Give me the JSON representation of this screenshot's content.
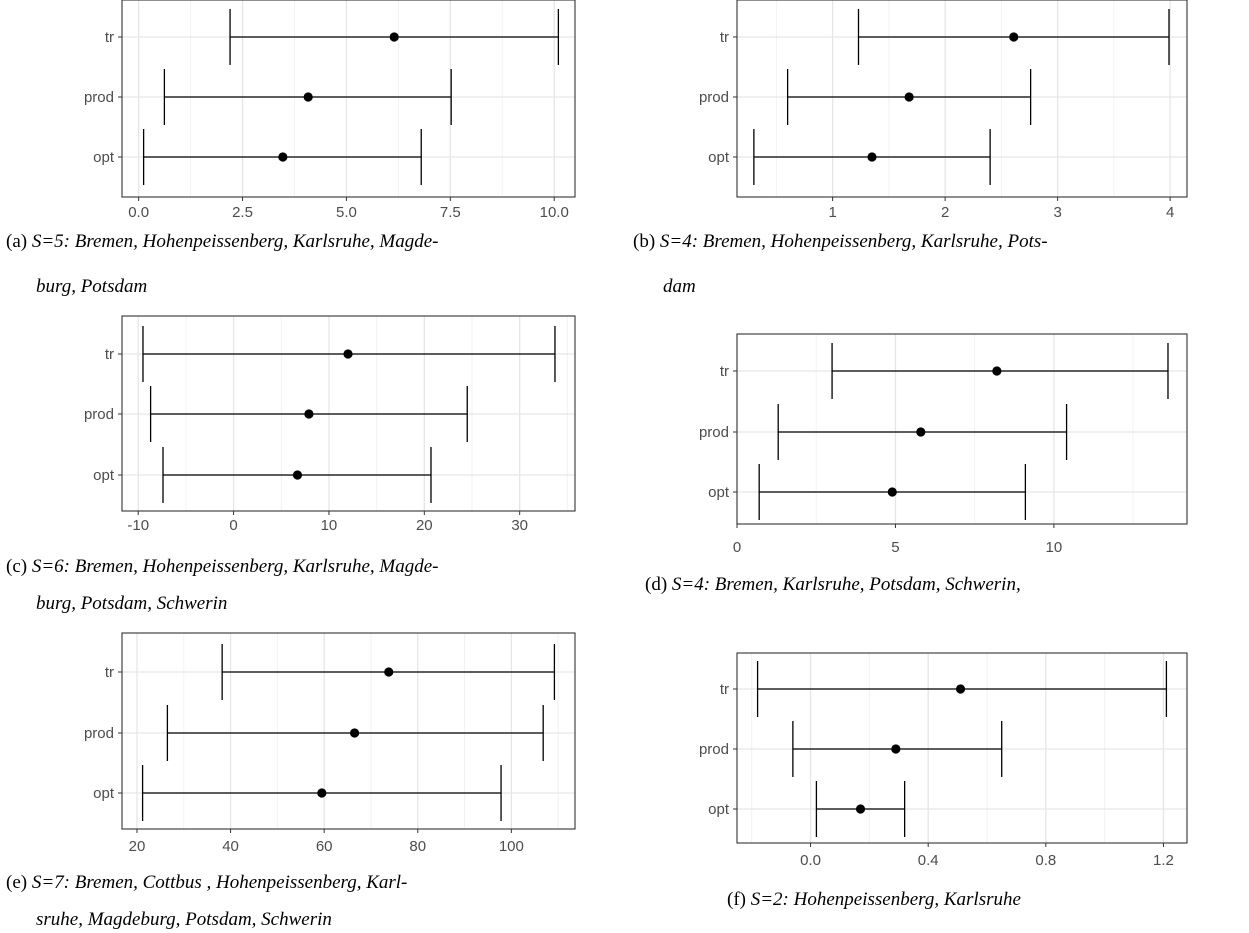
{
  "chart_data": [
    {
      "type": "errorbar",
      "panel_label": "(a)",
      "caption_lines": [
        "S=5: Bremen, Hohenpeissenberg, Karlsruhe, Magde-",
        "burg, Potsdam"
      ],
      "categories": [
        "tr",
        "prod",
        "opt"
      ],
      "estimates": [
        6.15,
        4.08,
        3.47
      ],
      "lower": [
        2.2,
        0.62,
        0.12
      ],
      "upper": [
        10.1,
        7.52,
        6.8
      ],
      "xlim": [
        -0.4,
        10.5
      ],
      "xticks": [
        "0.0",
        "2.5",
        "5.0",
        "7.5",
        "10.0"
      ],
      "xtick_values": [
        0,
        2.5,
        5,
        7.5,
        10
      ]
    },
    {
      "type": "errorbar",
      "panel_label": "(b)",
      "caption_lines": [
        "S=4: Bremen, Hohenpeissenberg, Karlsruhe, Pots-",
        "dam"
      ],
      "categories": [
        "tr",
        "prod",
        "opt"
      ],
      "estimates": [
        2.61,
        1.68,
        1.35
      ],
      "lower": [
        1.23,
        0.6,
        0.3
      ],
      "upper": [
        3.99,
        2.76,
        2.4
      ],
      "xlim": [
        0.15,
        4.15
      ],
      "xticks": [
        "1",
        "2",
        "3",
        "4"
      ],
      "xtick_values": [
        1,
        2,
        3,
        4
      ]
    },
    {
      "type": "errorbar",
      "panel_label": "(c)",
      "caption_lines": [
        "S=6: Bremen, Hohenpeissenberg, Karlsruhe, Magde-",
        "burg, Potsdam, Schwerin"
      ],
      "categories": [
        "tr",
        "prod",
        "opt"
      ],
      "estimates": [
        12.0,
        7.9,
        6.7
      ],
      "lower": [
        -9.5,
        -8.7,
        -7.4
      ],
      "upper": [
        33.7,
        24.5,
        20.7
      ],
      "xlim": [
        -11.7,
        35.8
      ],
      "xticks": [
        "-10",
        "0",
        "10",
        "20",
        "30"
      ],
      "xtick_values": [
        -10,
        0,
        10,
        20,
        30
      ]
    },
    {
      "type": "errorbar",
      "panel_label": "(d)",
      "caption_lines": [
        "S=4: Bremen, Karlsruhe, Potsdam, Schwerin,"
      ],
      "categories": [
        "tr",
        "prod",
        "opt"
      ],
      "estimates": [
        8.2,
        5.8,
        4.9
      ],
      "lower": [
        3.0,
        1.3,
        0.7
      ],
      "upper": [
        13.6,
        10.4,
        9.1
      ],
      "xlim": [
        0,
        14.2
      ],
      "xticks": [
        "0",
        "5",
        "10"
      ],
      "xtick_values": [
        0,
        5,
        10
      ]
    },
    {
      "type": "errorbar",
      "panel_label": "(e)",
      "caption_lines": [
        "S=7: Bremen, Cottbus , Hohenpeissenberg, Karl-",
        "sruhe, Magdeburg, Potsdam, Schwerin"
      ],
      "categories": [
        "tr",
        "prod",
        "opt"
      ],
      "estimates": [
        73.8,
        66.5,
        59.5
      ],
      "lower": [
        38.2,
        26.5,
        21.2
      ],
      "upper": [
        109.2,
        106.8,
        97.8
      ],
      "xlim": [
        16.8,
        113.6
      ],
      "xticks": [
        "20",
        "40",
        "60",
        "80",
        "100"
      ],
      "xtick_values": [
        20,
        40,
        60,
        80,
        100
      ]
    },
    {
      "type": "errorbar",
      "panel_label": "(f)",
      "caption_lines": [
        "S=2: Hohenpeissenberg, Karlsruhe"
      ],
      "categories": [
        "tr",
        "prod",
        "opt"
      ],
      "estimates": [
        0.51,
        0.29,
        0.17
      ],
      "lower": [
        -0.18,
        -0.06,
        0.02
      ],
      "upper": [
        1.21,
        0.65,
        0.32
      ],
      "xlim": [
        -0.25,
        1.28
      ],
      "xticks": [
        "0.0",
        "0.4",
        "0.8",
        "1.2"
      ],
      "xtick_values": [
        0,
        0.4,
        0.8,
        1.2
      ]
    }
  ]
}
